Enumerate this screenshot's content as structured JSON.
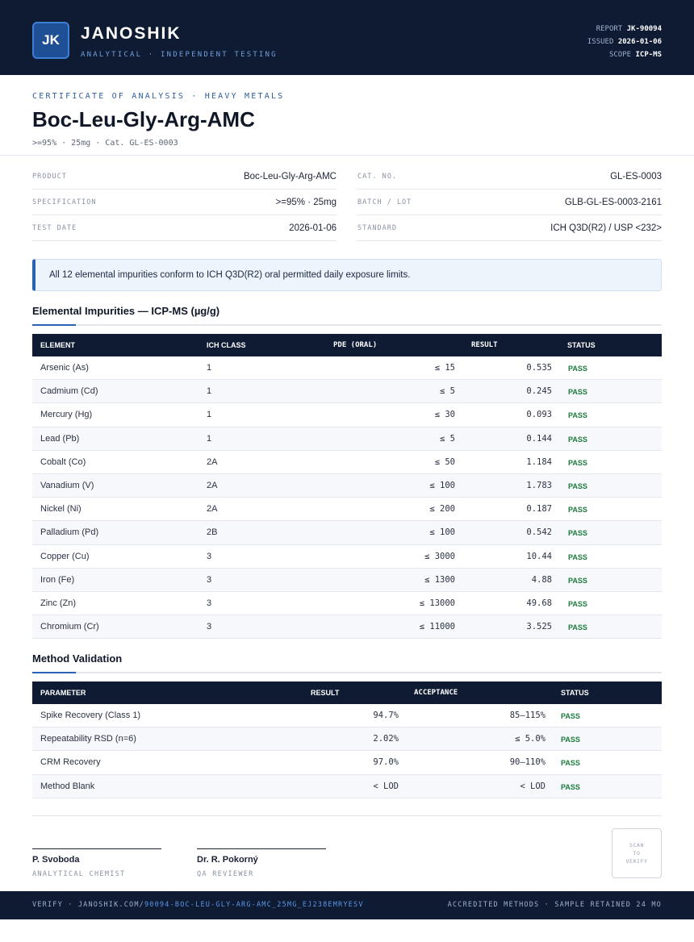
{
  "header": {
    "logo": "JK",
    "brand": "JANOSHIK",
    "tagline": "ANALYTICAL · INDEPENDENT TESTING",
    "report_label": "REPORT",
    "report_value": "JK-90094",
    "issued_label": "ISSUED",
    "issued_value": "2026-01-06",
    "scope_label": "SCOPE",
    "scope_value": "ICP-MS"
  },
  "doc": {
    "kicker": "CERTIFICATE OF ANALYSIS · HEAVY METALS",
    "title": "Boc-Leu-Gly-Arg-AMC",
    "subtitle": ">=95% · 25mg  ·  Cat. GL-ES-0003"
  },
  "info": {
    "left": [
      {
        "label": "PRODUCT",
        "value": "Boc-Leu-Gly-Arg-AMC"
      },
      {
        "label": "SPECIFICATION",
        "value": ">=95% · 25mg"
      },
      {
        "label": "TEST DATE",
        "value": "2026-01-06"
      }
    ],
    "right": [
      {
        "label": "CAT. NO.",
        "value": "GL-ES-0003"
      },
      {
        "label": "BATCH / LOT",
        "value": "GLB-GL-ES-0003-2161"
      },
      {
        "label": "STANDARD",
        "value": "ICH Q3D(R2) / USP <232>"
      }
    ]
  },
  "note": "All 12 elemental impurities conform to ICH Q3D(R2) oral permitted daily exposure limits.",
  "impurities": {
    "title": "Elemental Impurities — ICP-MS (µg/g)",
    "headers": [
      "ELEMENT",
      "ICH CLASS",
      "PDE (ORAL)",
      "RESULT",
      "STATUS"
    ],
    "rows": [
      {
        "element": "Arsenic (As)",
        "cls": "1",
        "pde": "≤ 15",
        "result": "0.535",
        "status": "PASS"
      },
      {
        "element": "Cadmium (Cd)",
        "cls": "1",
        "pde": "≤ 5",
        "result": "0.245",
        "status": "PASS"
      },
      {
        "element": "Mercury (Hg)",
        "cls": "1",
        "pde": "≤ 30",
        "result": "0.093",
        "status": "PASS"
      },
      {
        "element": "Lead (Pb)",
        "cls": "1",
        "pde": "≤ 5",
        "result": "0.144",
        "status": "PASS"
      },
      {
        "element": "Cobalt (Co)",
        "cls": "2A",
        "pde": "≤ 50",
        "result": "1.184",
        "status": "PASS"
      },
      {
        "element": "Vanadium (V)",
        "cls": "2A",
        "pde": "≤ 100",
        "result": "1.783",
        "status": "PASS"
      },
      {
        "element": "Nickel (Ni)",
        "cls": "2A",
        "pde": "≤ 200",
        "result": "0.187",
        "status": "PASS"
      },
      {
        "element": "Palladium (Pd)",
        "cls": "2B",
        "pde": "≤ 100",
        "result": "0.542",
        "status": "PASS"
      },
      {
        "element": "Copper (Cu)",
        "cls": "3",
        "pde": "≤ 3000",
        "result": "10.44",
        "status": "PASS"
      },
      {
        "element": "Iron (Fe)",
        "cls": "3",
        "pde": "≤ 1300",
        "result": "4.88",
        "status": "PASS"
      },
      {
        "element": "Zinc (Zn)",
        "cls": "3",
        "pde": "≤ 13000",
        "result": "49.68",
        "status": "PASS"
      },
      {
        "element": "Chromium (Cr)",
        "cls": "3",
        "pde": "≤ 11000",
        "result": "3.525",
        "status": "PASS"
      }
    ]
  },
  "validation": {
    "title": "Method Validation",
    "headers": [
      "PARAMETER",
      "RESULT",
      "ACCEPTANCE",
      "STATUS"
    ],
    "rows": [
      {
        "param": "Spike Recovery (Class 1)",
        "result": "94.7%",
        "acceptance": "85–115%",
        "status": "PASS"
      },
      {
        "param": "Repeatability RSD (n=6)",
        "result": "2.02%",
        "acceptance": "≤ 5.0%",
        "status": "PASS"
      },
      {
        "param": "CRM Recovery",
        "result": "97.0%",
        "acceptance": "90–110%",
        "status": "PASS"
      },
      {
        "param": "Method Blank",
        "result": "< LOD",
        "acceptance": "< LOD",
        "status": "PASS"
      }
    ]
  },
  "signatures": [
    {
      "name": "P. Svoboda",
      "role": "ANALYTICAL CHEMIST"
    },
    {
      "name": "Dr. R. Pokorný",
      "role": "QA REVIEWER"
    }
  ],
  "qr": {
    "line1": "SCAN",
    "line2": "TO",
    "line3": "VERIFY"
  },
  "footer": {
    "verify_prefix": "VERIFY · JANOSHIK.COM/",
    "verify_url": "90094-BOC-LEU-GLY-ARG-AMC_25MG_EJ238EMRYESV",
    "right": "ACCREDITED METHODS · SAMPLE RETAINED 24 MO"
  },
  "colors": {
    "navy": "#0f1b33",
    "accent": "#2a62b5",
    "pass": "#1c7a3c"
  }
}
